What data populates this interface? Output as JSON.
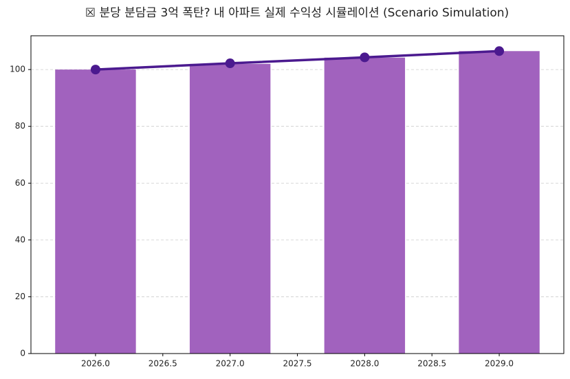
{
  "chart_data": {
    "type": "bar",
    "title": "☒ 분당 분담금 3억 폭탄? 내 아파트 실제 수익성 시뮬레이션 (Scenario Simulation)",
    "x": [
      2026,
      2027,
      2028,
      2029
    ],
    "series": [
      {
        "type": "bar",
        "color": "#a162be",
        "values": [
          100,
          102,
          104.2,
          106.5
        ]
      },
      {
        "type": "line",
        "color": "#4b1a8f",
        "values": [
          100,
          102.2,
          104.3,
          106.5
        ]
      }
    ],
    "bar_width": 0.6,
    "xlim": [
      2025.52,
      2029.48
    ],
    "xticks": [
      {
        "value": 2026,
        "label": "2026.0"
      },
      {
        "value": 2026.5,
        "label": "2026.5"
      },
      {
        "value": 2027,
        "label": "2027.0"
      },
      {
        "value": 2027.5,
        "label": "2027.5"
      },
      {
        "value": 2028,
        "label": "2028.0"
      },
      {
        "value": 2028.5,
        "label": "2028.5"
      },
      {
        "value": 2029,
        "label": "2029.0"
      }
    ],
    "ylim": [
      0,
      111.9
    ],
    "yticks": [
      0,
      20,
      40,
      60,
      80,
      100
    ],
    "grid": true
  }
}
